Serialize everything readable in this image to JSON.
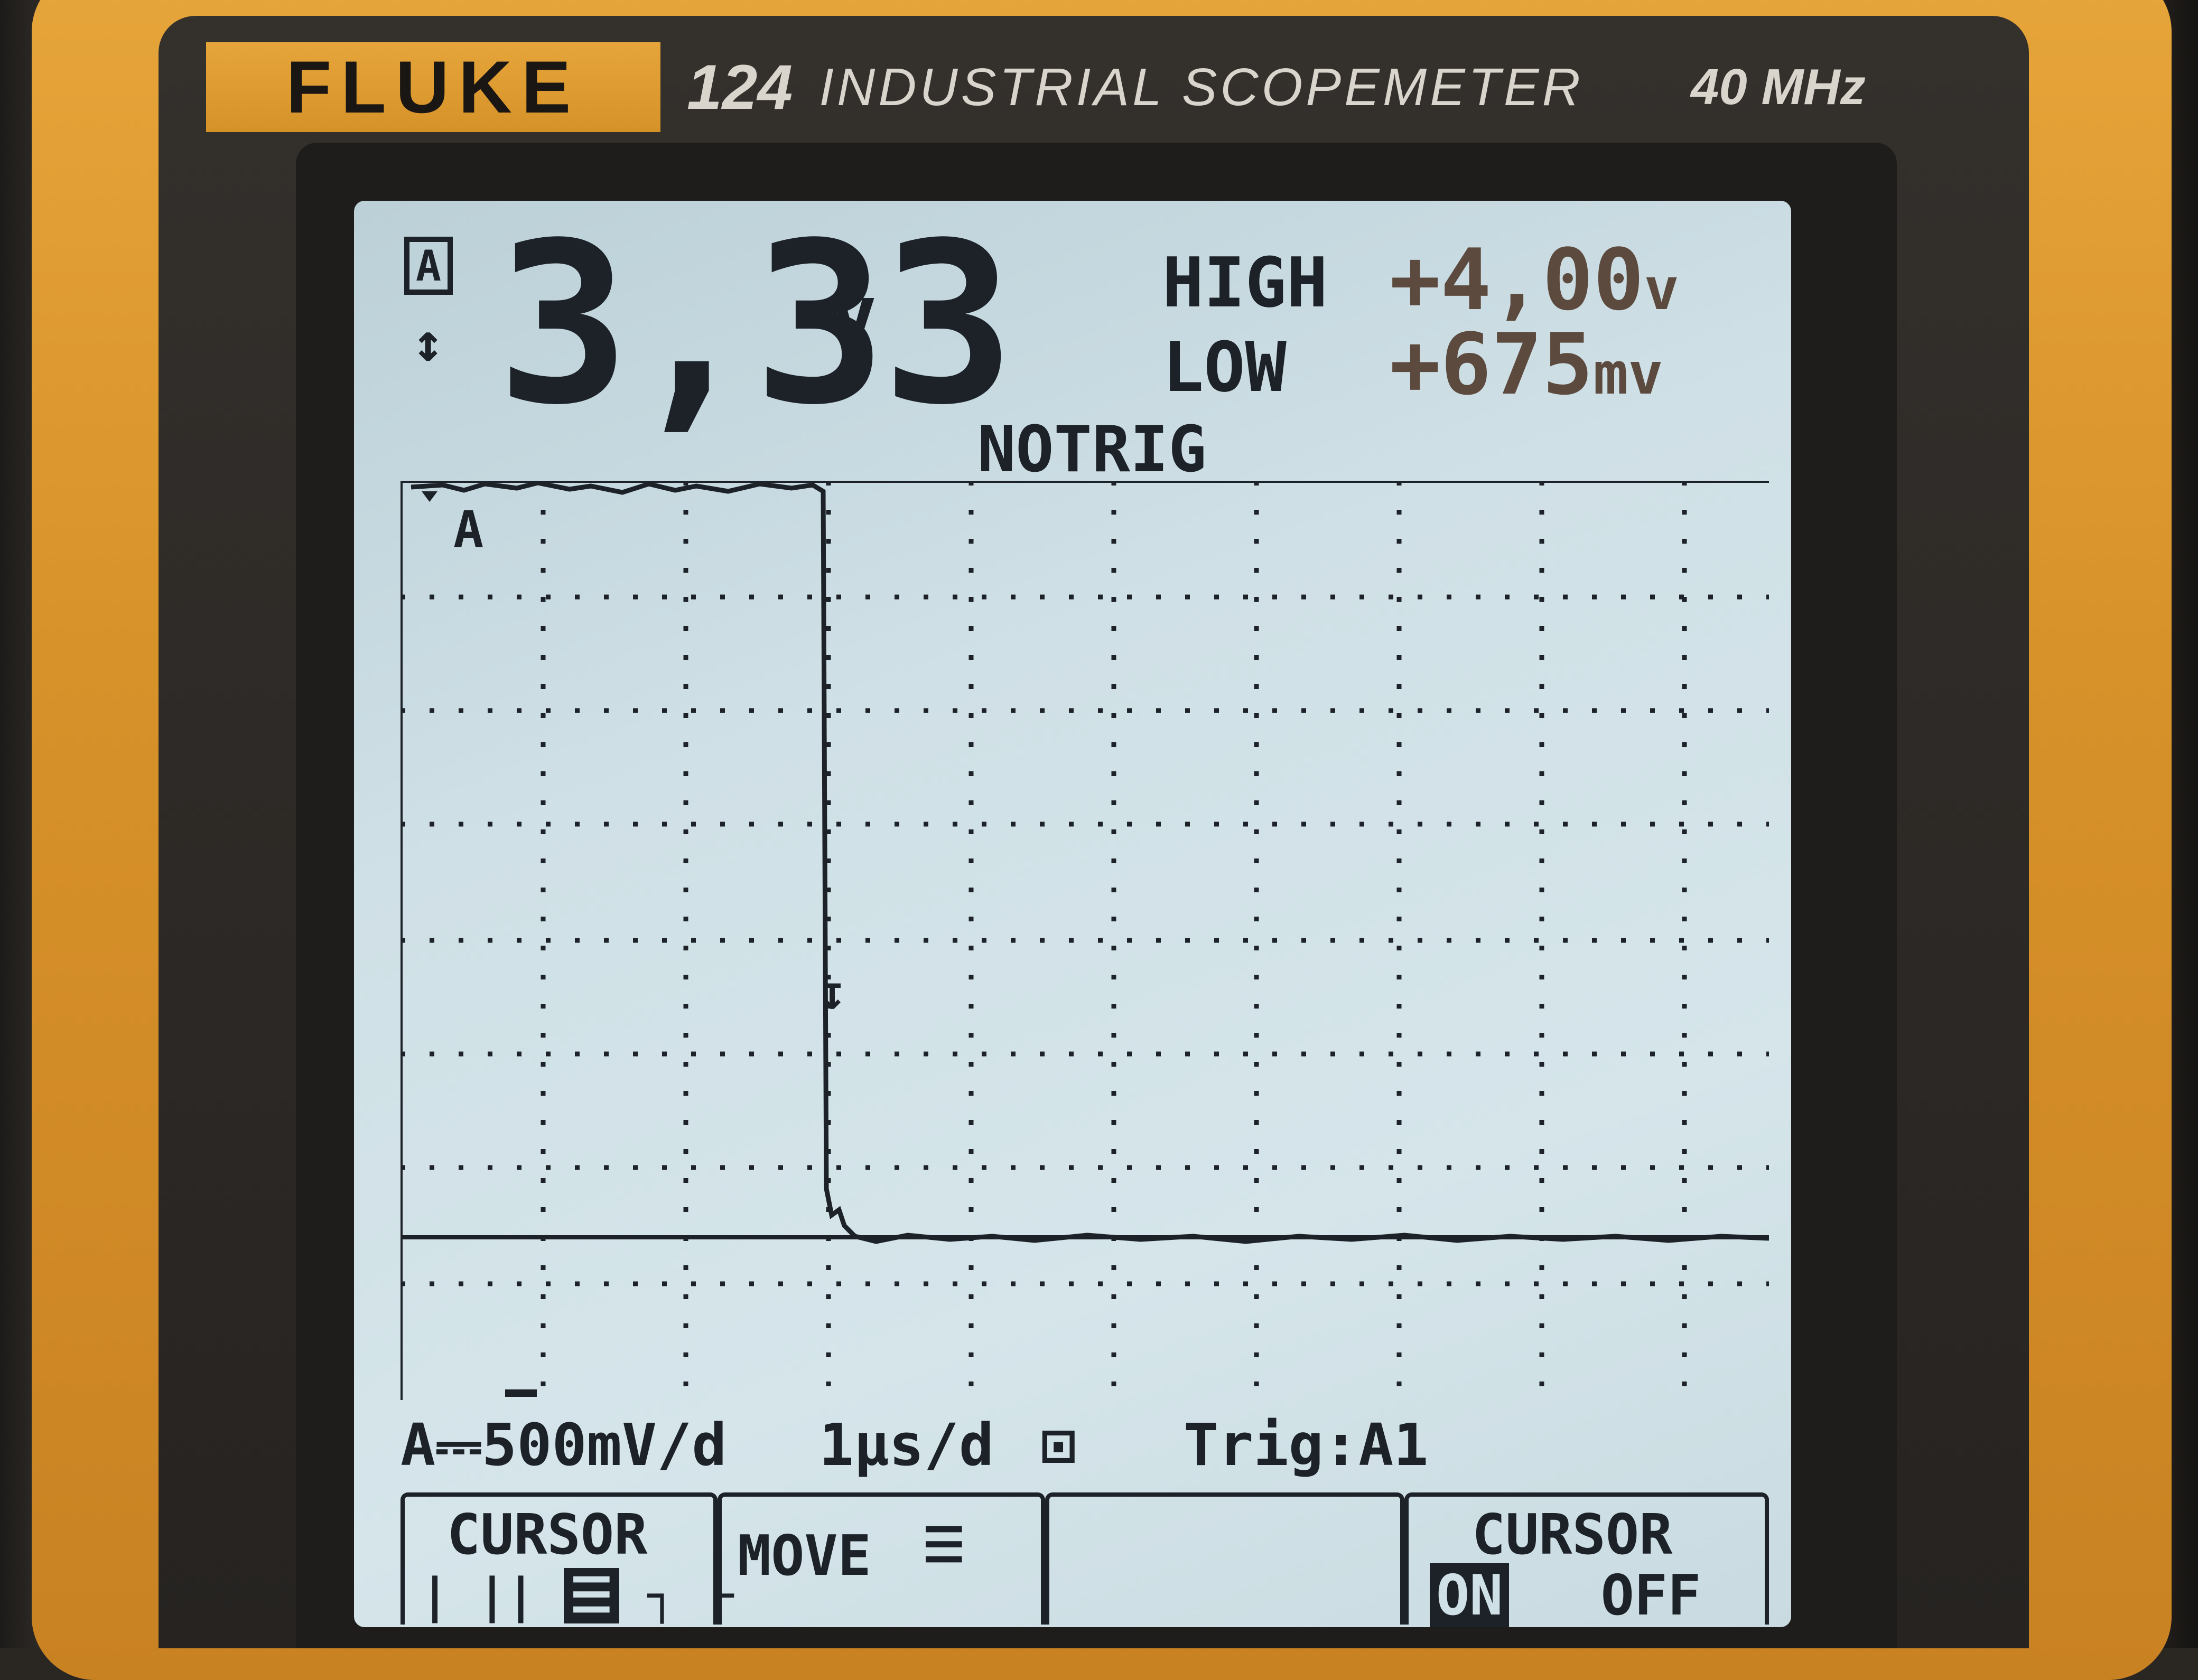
{
  "device": {
    "brand": "FLUKE",
    "model_number": "124",
    "model_name": "INDUSTRIAL SCOPEMETER",
    "bandwidth": "40 MHz"
  },
  "screen": {
    "channel_label": "A",
    "main_reading": {
      "value": "3,33",
      "unit": "v"
    },
    "high": {
      "label": "HIGH",
      "value": "+4,00",
      "unit": "v"
    },
    "low": {
      "label": "LOW",
      "value": "+675",
      "unit": "mv"
    },
    "trigger_status": "NOTRIG",
    "trace_label": "A",
    "scale": {
      "channel": "A⎓500mV/d",
      "timebase": "1µs/d",
      "trigger": "Trig:A1"
    },
    "softkeys": [
      {
        "title": "CURSOR",
        "options": [
          "|",
          "||",
          "☰",
          "┐",
          "└"
        ]
      },
      {
        "title": "MOVE"
      },
      {
        "title": ""
      },
      {
        "title": "CURSOR",
        "options": [
          "ON",
          "OFF"
        ],
        "selected": "ON"
      }
    ]
  },
  "colors": {
    "housing": "#d8922a",
    "lcd_background": "#cfe0e6",
    "lcd_ink": "#1c2228",
    "highlow_ink": "#5d4a3e"
  }
}
